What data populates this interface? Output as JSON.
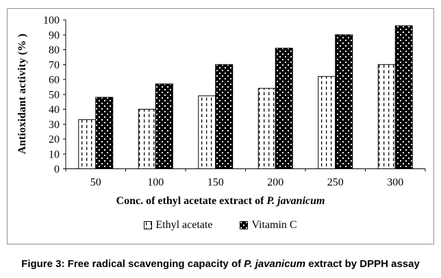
{
  "chart_data": {
    "type": "bar",
    "categories": [
      "50",
      "100",
      "150",
      "200",
      "250",
      "300"
    ],
    "series": [
      {
        "name": "Ethyl acetate",
        "fill_pattern": "vertical-dashes-on-white",
        "values": [
          33,
          40,
          49,
          54,
          62,
          70
        ]
      },
      {
        "name": "Vitamin C",
        "fill_pattern": "white-dots-on-black",
        "values": [
          48,
          57,
          70,
          81,
          90,
          96
        ]
      }
    ],
    "title": "",
    "ylabel": "Antioxidant activity (% )",
    "xlabel_prefix": "Conc. of ethyl acetate extract of ",
    "xlabel_italic": "P. javanicum",
    "ylim": [
      0,
      100
    ],
    "yticks": [
      0,
      10,
      20,
      30,
      40,
      50,
      60,
      70,
      80,
      90,
      100
    ],
    "grid": false,
    "legend_position": "bottom",
    "bar_color": "#000000",
    "axis_color": "#000000",
    "frame_border_color": "#919191"
  },
  "figure_caption": {
    "prefix": "Figure 3: Free radical scavenging capacity of ",
    "species": "P. javanicum",
    "suffix": " extract by DPPH assay"
  }
}
